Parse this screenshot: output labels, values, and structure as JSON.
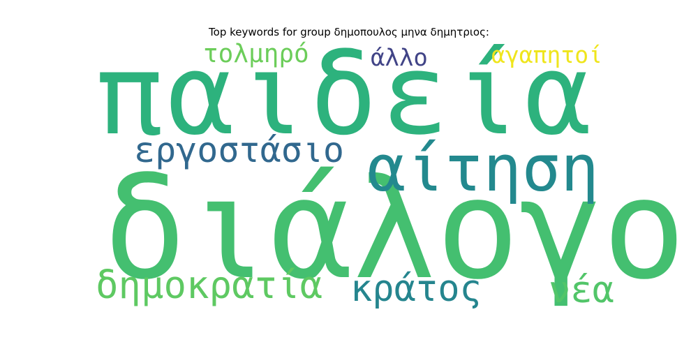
{
  "title": "Top keywords for group δημοπουλος μηνα δημητριος:",
  "words": [
    {
      "text": "παιδεία",
      "color": "#2db27d"
    },
    {
      "text": "διάλογο",
      "color": "#44bf70"
    },
    {
      "text": "αίτηση",
      "color": "#23898e"
    },
    {
      "text": "εργοστάσιο",
      "color": "#31688e"
    },
    {
      "text": "δημοκρατία",
      "color": "#5ec962"
    },
    {
      "text": "κράτος",
      "color": "#25858e"
    },
    {
      "text": "νέα",
      "color": "#52c569"
    },
    {
      "text": "τολμηρό",
      "color": "#6ccd5a"
    },
    {
      "text": "άλλο",
      "color": "#414487"
    },
    {
      "text": "αγαπητοί",
      "color": "#efe51c"
    }
  ]
}
